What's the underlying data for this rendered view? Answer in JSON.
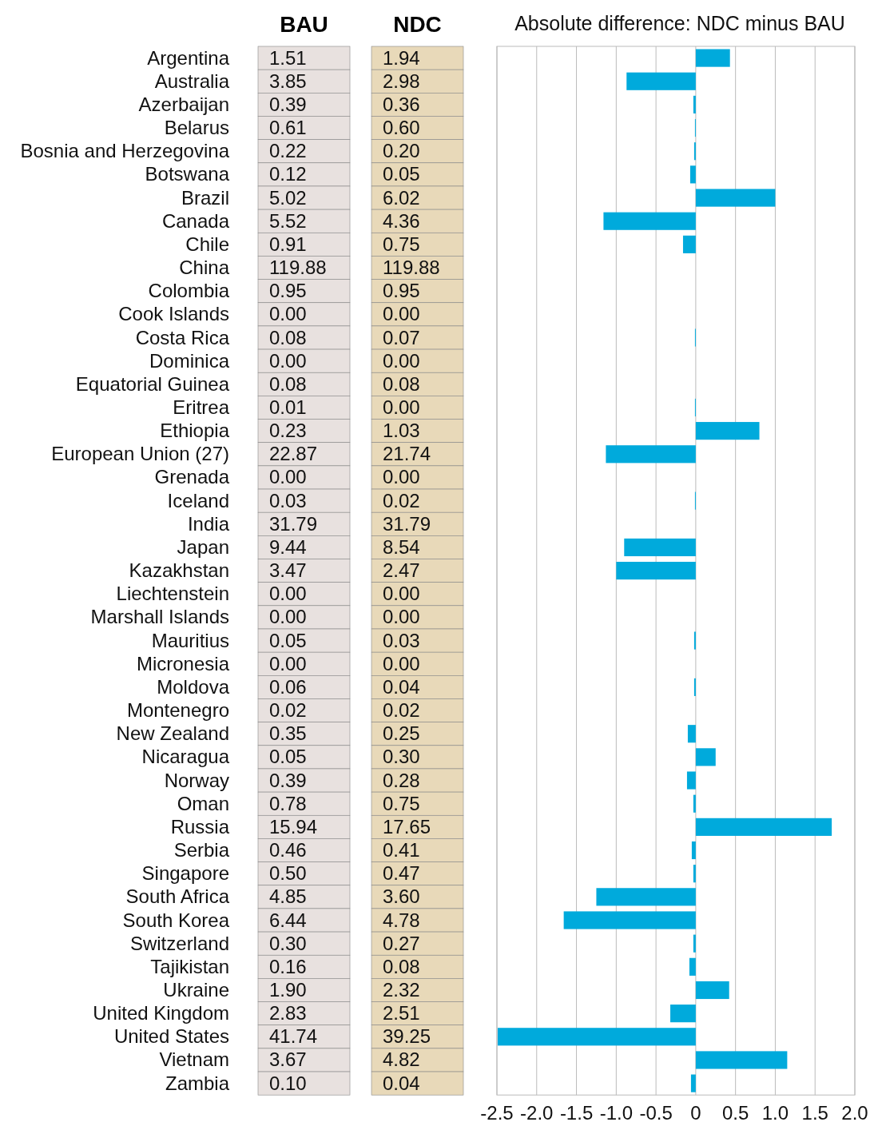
{
  "chart_data": [
    {
      "type": "other",
      "categories": [
        "Argentina",
        "Australia",
        "Azerbaijan",
        "Belarus",
        "Bosnia and Herzegovina",
        "Botswana",
        "Brazil",
        "Canada",
        "Chile",
        "China",
        "Colombia",
        "Cook Islands",
        "Costa Rica",
        "Dominica",
        "Equatorial Guinea",
        "Eritrea",
        "Ethiopia",
        "European Union (27)",
        "Grenada",
        "Iceland",
        "India",
        "Japan",
        "Kazakhstan",
        "Liechtenstein",
        "Marshall Islands",
        "Mauritius",
        "Micronesia",
        "Moldova",
        "Montenegro",
        "New Zealand",
        "Nicaragua",
        "Norway",
        "Oman",
        "Russia",
        "Serbia",
        "Singapore",
        "South Africa",
        "South Korea",
        "Switzerland",
        "Tajikistan",
        "Ukraine",
        "United Kingdom",
        "United States",
        "Vietnam",
        "Zambia"
      ],
      "series": [
        {
          "name": "BAU",
          "color": "#e8e1df",
          "values": [
            1.51,
            3.85,
            0.39,
            0.61,
            0.22,
            0.12,
            5.02,
            5.52,
            0.91,
            119.88,
            0.95,
            0,
            0.08,
            0,
            0.08,
            0.01,
            0.23,
            22.87,
            0,
            0.03,
            31.79,
            9.44,
            3.47,
            0,
            0,
            0.05,
            0,
            0.06,
            0.02,
            0.35,
            0.05,
            0.39,
            0.78,
            15.94,
            0.46,
            0.5,
            4.85,
            6.44,
            0.3,
            0.16,
            1.9,
            2.83,
            41.74,
            3.67,
            0.1
          ],
          "value_labels": [
            "1.51",
            "3.85",
            "0.39",
            "0.61",
            "0.22",
            "0.12",
            "5.02",
            "5.52",
            "0.91",
            "119.88",
            "0.95",
            "0.00",
            "0.08",
            "0.00",
            "0.08",
            "0.01",
            "0.23",
            "22.87",
            "0.00",
            "0.03",
            "31.79",
            "9.44",
            "3.47",
            "0.00",
            "0.00",
            "0.05",
            "0.00",
            "0.06",
            "0.02",
            "0.35",
            "0.05",
            "0.39",
            "0.78",
            "15.94",
            "0.46",
            "0.50",
            "4.85",
            "6.44",
            "0.30",
            "0.16",
            "1.90",
            "2.83",
            "41.74",
            "3.67",
            "0.10"
          ]
        },
        {
          "name": "NDC",
          "color": "#e8d9b9",
          "values": [
            1.94,
            2.98,
            0.36,
            0.6,
            0.2,
            0.05,
            6.02,
            4.36,
            0.75,
            119.88,
            0.95,
            0,
            0.07,
            0,
            0.08,
            0,
            1.03,
            21.74,
            0,
            0.02,
            31.79,
            8.54,
            2.47,
            0,
            0,
            0.03,
            0,
            0.04,
            0.02,
            0.25,
            0.3,
            0.28,
            0.75,
            17.65,
            0.41,
            0.47,
            3.6,
            4.78,
            0.27,
            0.08,
            2.32,
            2.51,
            39.25,
            4.82,
            0.04
          ],
          "value_labels": [
            "1.94",
            "2.98",
            "0.36",
            "0.60",
            "0.20",
            "0.05",
            "6.02",
            "4.36",
            "0.75",
            "119.88",
            "0.95",
            "0.00",
            "0.07",
            "0.00",
            "0.08",
            "0.00",
            "1.03",
            "21.74",
            "0.00",
            "0.02",
            "31.79",
            "8.54",
            "2.47",
            "0.00",
            "0.00",
            "0.03",
            "0.00",
            "0.04",
            "0.02",
            "0.25",
            "0.30",
            "0.28",
            "0.75",
            "17.65",
            "0.41",
            "0.47",
            "3.60",
            "4.78",
            "0.27",
            "0.08",
            "2.32",
            "2.51",
            "39.25",
            "4.82",
            "0.04"
          ]
        }
      ]
    },
    {
      "type": "bar",
      "orientation": "horizontal",
      "title": "Absolute difference: NDC minus BAU",
      "categories": [
        null,
        null,
        null,
        null,
        null,
        null,
        null,
        null,
        null,
        null,
        null,
        null,
        null,
        null,
        null,
        null,
        null,
        null,
        null,
        null,
        null,
        null,
        null,
        null,
        null,
        null,
        null,
        null,
        null,
        null,
        null,
        null,
        null,
        null,
        null,
        null,
        null,
        null,
        null,
        null,
        null,
        null,
        null,
        null,
        null
      ],
      "color": "#00aadc",
      "values": [
        0.43,
        -0.87,
        -0.03,
        -0.01,
        -0.02,
        -0.07,
        1.0,
        -1.16,
        -0.16,
        0,
        0,
        0,
        -0.01,
        0,
        0,
        -0.01,
        0.8,
        -1.13,
        0,
        -0.01,
        0,
        -0.9,
        -1.0,
        0,
        0,
        -0.02,
        0,
        -0.02,
        0,
        -0.1,
        0.25,
        -0.11,
        -0.03,
        1.71,
        -0.05,
        -0.03,
        -1.25,
        -1.66,
        -0.03,
        -0.08,
        0.42,
        -0.32,
        -2.49,
        1.15,
        -0.06
      ],
      "xlim": [
        -2.5,
        2.0
      ],
      "xticks": [
        {
          "value": -2.5,
          "label": "-2.5"
        },
        {
          "value": -2,
          "label": "-2.0"
        },
        {
          "value": -1.5,
          "label": "-1.5"
        },
        {
          "value": -1,
          "label": "-1.0"
        },
        {
          "value": -0.5,
          "label": "-0.5"
        },
        0,
        {
          "value": 0.5,
          "label": "0.5"
        },
        {
          "value": 1,
          "label": "1.0"
        },
        {
          "value": 1.5,
          "label": "1.5"
        },
        {
          "value": 2,
          "label": "2.0"
        }
      ],
      "grid": "x",
      "tick_labels": "x"
    }
  ]
}
